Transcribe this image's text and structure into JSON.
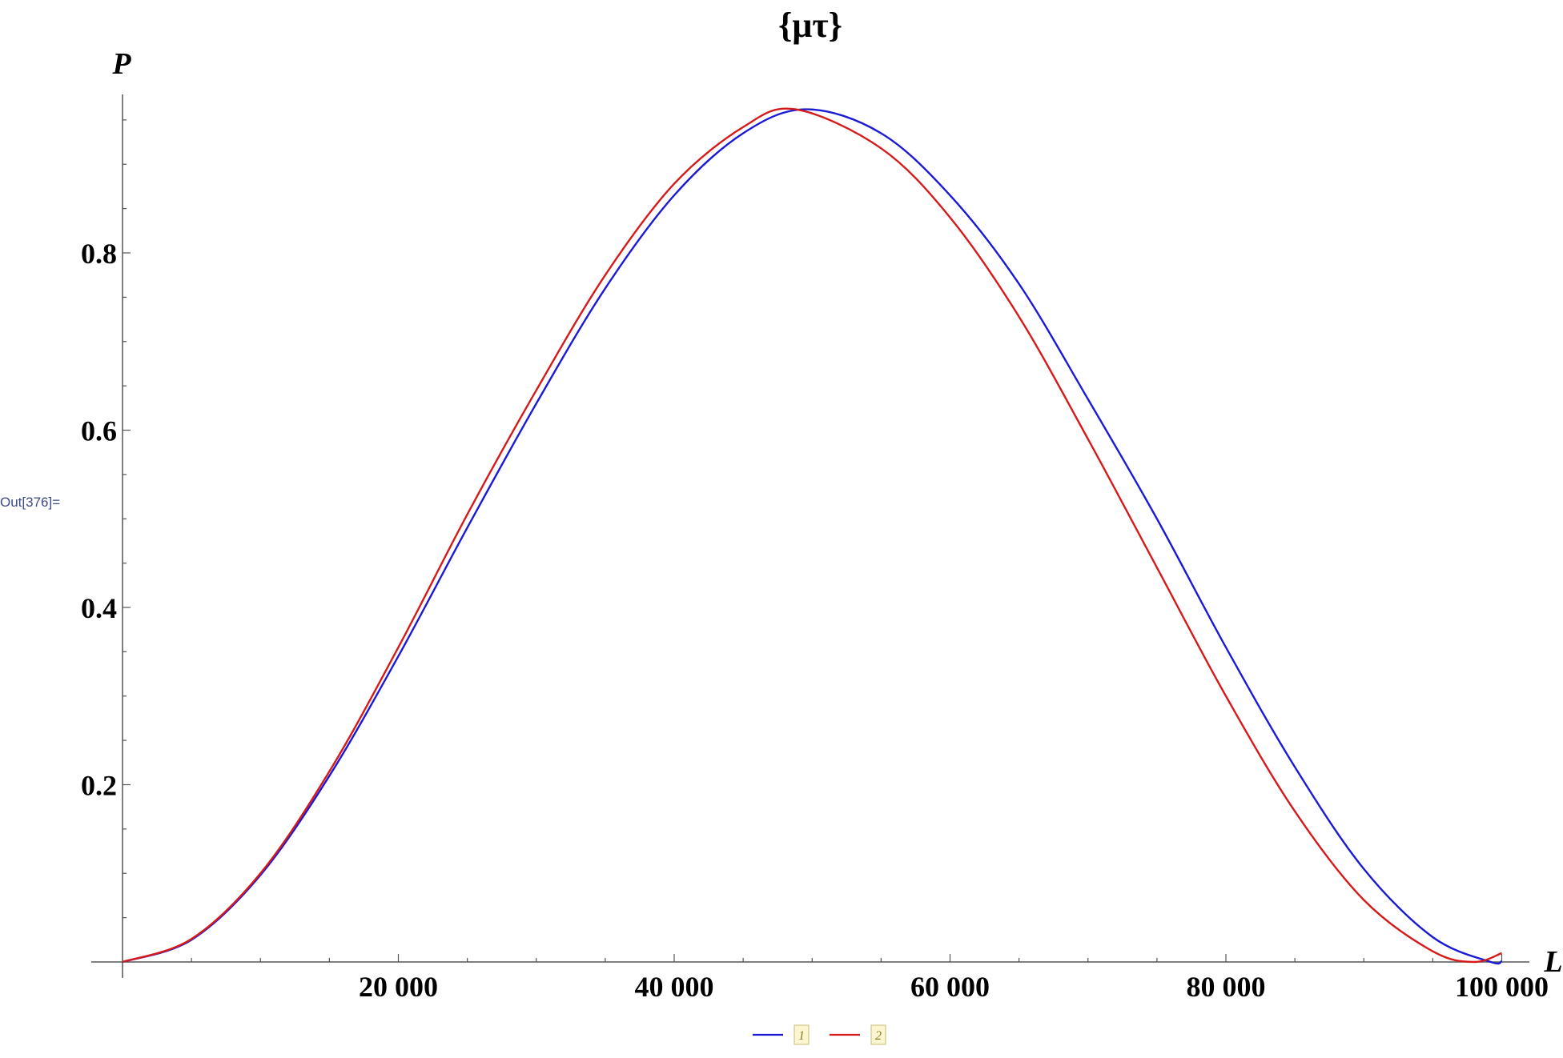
{
  "cell_label": "Out[376]=",
  "chart_data": {
    "type": "line",
    "title": "{μτ}",
    "xlabel": "L",
    "ylabel": "P",
    "xlim": [
      0,
      102000
    ],
    "ylim": [
      0,
      0.98
    ],
    "x_ticks": [
      {
        "value": 20000,
        "label": "20 000"
      },
      {
        "value": 40000,
        "label": "40 000"
      },
      {
        "value": 60000,
        "label": "60 000"
      },
      {
        "value": 80000,
        "label": "80 000"
      },
      {
        "value": 100000,
        "label": "100 000"
      }
    ],
    "y_ticks": [
      {
        "value": 0.2,
        "label": "0.2"
      },
      {
        "value": 0.4,
        "label": "0.4"
      },
      {
        "value": 0.6,
        "label": "0.6"
      },
      {
        "value": 0.8,
        "label": "0.8"
      }
    ],
    "grid": false,
    "legend_position": "bottom-center",
    "series": [
      {
        "name": "1",
        "color": "#1a1ad6",
        "x": [
          0,
          5000,
          10000,
          15000,
          20000,
          25000,
          30000,
          35000,
          40000,
          45000,
          49600,
          55000,
          60000,
          65000,
          70000,
          75000,
          80000,
          85000,
          90000,
          95000,
          99200,
          100000
        ],
        "y": [
          0,
          0.025,
          0.098,
          0.21,
          0.345,
          0.49,
          0.63,
          0.76,
          0.865,
          0.935,
          0.962,
          0.935,
          0.865,
          0.765,
          0.635,
          0.5,
          0.355,
          0.22,
          0.105,
          0.028,
          0,
          0.001
        ]
      },
      {
        "name": "2",
        "color": "#d61a1a",
        "x": [
          0,
          5000,
          10000,
          15000,
          20000,
          25000,
          30000,
          35000,
          40000,
          45000,
          48800,
          55000,
          60000,
          65000,
          70000,
          75000,
          80000,
          85000,
          90000,
          95000,
          98000,
          100000
        ],
        "y": [
          0,
          0.026,
          0.1,
          0.215,
          0.355,
          0.505,
          0.645,
          0.775,
          0.878,
          0.942,
          0.962,
          0.918,
          0.84,
          0.728,
          0.59,
          0.445,
          0.3,
          0.17,
          0.07,
          0.012,
          0,
          0.01
        ]
      }
    ]
  }
}
